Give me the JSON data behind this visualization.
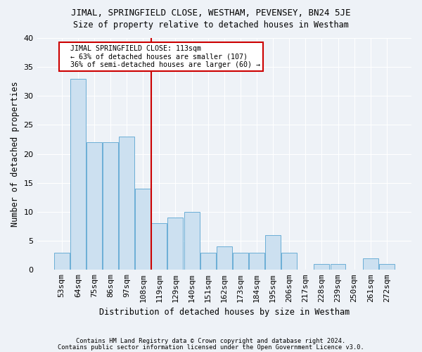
{
  "title1": "JIMAL, SPRINGFIELD CLOSE, WESTHAM, PEVENSEY, BN24 5JE",
  "title2": "Size of property relative to detached houses in Westham",
  "xlabel": "Distribution of detached houses by size in Westham",
  "ylabel": "Number of detached properties",
  "categories": [
    "53sqm",
    "64sqm",
    "75sqm",
    "86sqm",
    "97sqm",
    "108sqm",
    "119sqm",
    "129sqm",
    "140sqm",
    "151sqm",
    "162sqm",
    "173sqm",
    "184sqm",
    "195sqm",
    "206sqm",
    "217sqm",
    "228sqm",
    "239sqm",
    "250sqm",
    "261sqm",
    "272sqm"
  ],
  "values": [
    3,
    33,
    22,
    22,
    23,
    14,
    8,
    9,
    10,
    3,
    4,
    3,
    3,
    6,
    3,
    0,
    1,
    1,
    0,
    2,
    1
  ],
  "bar_color": "#cce0f0",
  "bar_edgecolor": "#6baed6",
  "vline_x": 5.5,
  "vline_color": "#cc0000",
  "annotation_line1": "  JIMAL SPRINGFIELD CLOSE: 113sqm",
  "annotation_line2": "  ← 63% of detached houses are smaller (107)",
  "annotation_line3": "  36% of semi-detached houses are larger (60) →",
  "annotation_box_edgecolor": "#cc0000",
  "annotation_box_facecolor": "#ffffff",
  "footer1": "Contains HM Land Registry data © Crown copyright and database right 2024.",
  "footer2": "Contains public sector information licensed under the Open Government Licence v3.0.",
  "background_color": "#eef2f7",
  "ylim": [
    0,
    40
  ],
  "yticks": [
    0,
    5,
    10,
    15,
    20,
    25,
    30,
    35,
    40
  ]
}
